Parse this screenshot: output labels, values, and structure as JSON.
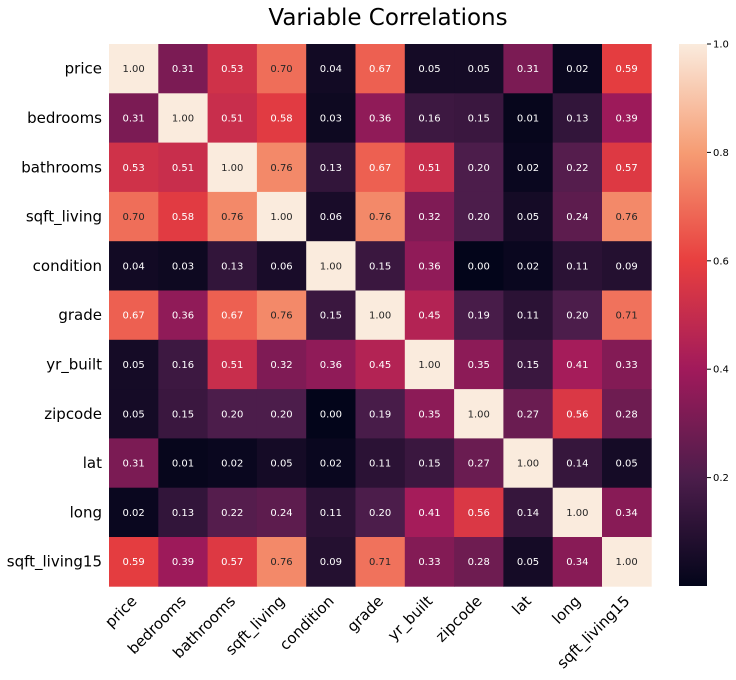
{
  "chart_data": {
    "type": "heatmap",
    "title": "Variable Correlations",
    "variables": [
      "price",
      "bedrooms",
      "bathrooms",
      "sqft_living",
      "condition",
      "grade",
      "yr_built",
      "zipcode",
      "lat",
      "long",
      "sqft_living15"
    ],
    "values": [
      [
        1.0,
        0.31,
        0.53,
        0.7,
        0.04,
        0.67,
        0.05,
        0.05,
        0.31,
        0.02,
        0.59
      ],
      [
        0.31,
        1.0,
        0.51,
        0.58,
        0.03,
        0.36,
        0.16,
        0.15,
        0.01,
        0.13,
        0.39
      ],
      [
        0.53,
        0.51,
        1.0,
        0.76,
        0.13,
        0.67,
        0.51,
        0.2,
        0.02,
        0.22,
        0.57
      ],
      [
        0.7,
        0.58,
        0.76,
        1.0,
        0.06,
        0.76,
        0.32,
        0.2,
        0.05,
        0.24,
        0.76
      ],
      [
        0.04,
        0.03,
        0.13,
        0.06,
        1.0,
        0.15,
        0.36,
        0.0,
        0.02,
        0.11,
        0.09
      ],
      [
        0.67,
        0.36,
        0.67,
        0.76,
        0.15,
        1.0,
        0.45,
        0.19,
        0.11,
        0.2,
        0.71
      ],
      [
        0.05,
        0.16,
        0.51,
        0.32,
        0.36,
        0.45,
        1.0,
        0.35,
        0.15,
        0.41,
        0.33
      ],
      [
        0.05,
        0.15,
        0.2,
        0.2,
        0.0,
        0.19,
        0.35,
        1.0,
        0.27,
        0.56,
        0.28
      ],
      [
        0.31,
        0.01,
        0.02,
        0.05,
        0.02,
        0.11,
        0.15,
        0.27,
        1.0,
        0.14,
        0.05
      ],
      [
        0.02,
        0.13,
        0.22,
        0.24,
        0.11,
        0.2,
        0.41,
        0.56,
        0.14,
        1.0,
        0.34
      ],
      [
        0.59,
        0.39,
        0.57,
        0.76,
        0.09,
        0.71,
        0.33,
        0.28,
        0.05,
        0.34,
        1.0
      ]
    ],
    "value_format": "2 decimals",
    "colorbar": {
      "ticks": [
        0.2,
        0.4,
        0.6,
        0.8,
        1.0
      ],
      "tick_labels": [
        "0.2",
        "0.4",
        "0.6",
        "0.8",
        "1.0"
      ],
      "range": [
        0.0,
        1.0
      ],
      "colormap": "rocket"
    },
    "grid": false,
    "legend": "colorbar-right"
  },
  "colors": {
    "colormap_stops": [
      "#03051a",
      "#4c1d4b",
      "#a11a5b",
      "#e83f3f",
      "#f69c73",
      "#faebdd"
    ]
  }
}
